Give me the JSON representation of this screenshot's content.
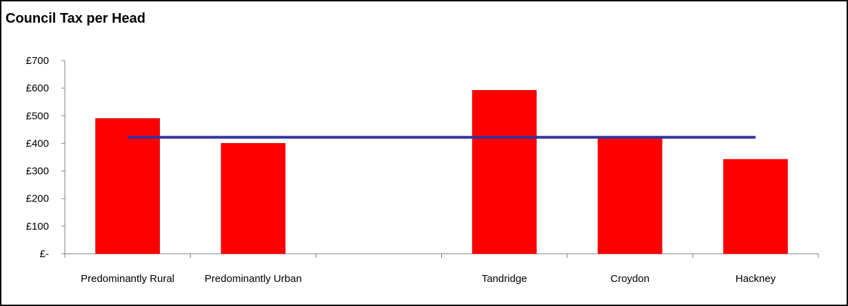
{
  "chart_data": {
    "type": "bar",
    "title": "Council Tax per Head",
    "categories": [
      "Predominantly Rural",
      "Predominantly Urban",
      "",
      "Tandridge",
      "Croydon",
      "Hackney"
    ],
    "series": [
      {
        "type": "bar",
        "values": [
          490,
          400,
          null,
          592,
          422,
          342
        ],
        "color": "#ff0000"
      },
      {
        "type": "line",
        "values": [
          422,
          422,
          422,
          422,
          422,
          422
        ],
        "color": "#333399"
      }
    ],
    "yticks": [
      "£-",
      "£100",
      "£200",
      "£300",
      "£400",
      "£500",
      "£600",
      "£700"
    ],
    "ylim": [
      0,
      700
    ],
    "xlabel": "",
    "ylabel": "",
    "grid": false,
    "legend": "none"
  }
}
